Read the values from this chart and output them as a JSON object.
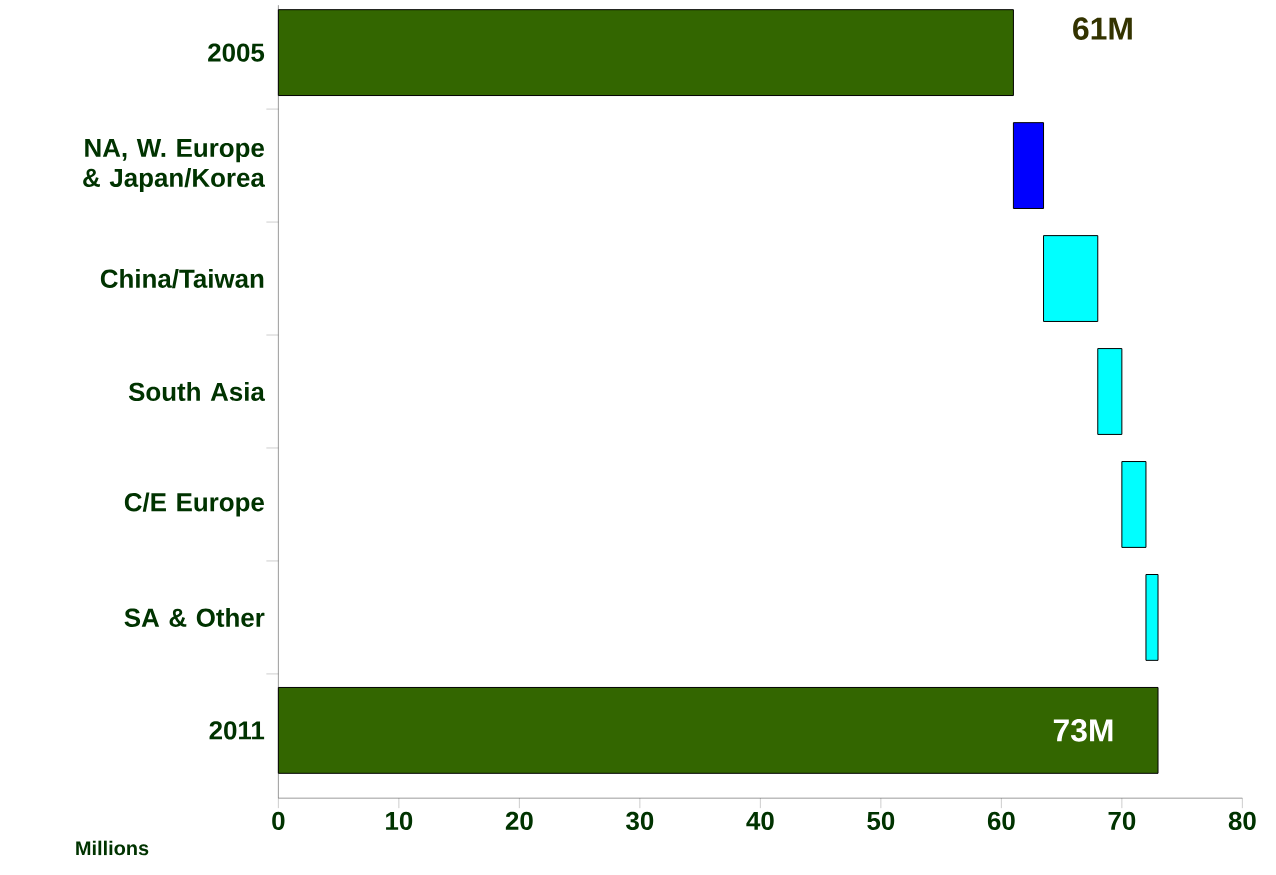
{
  "chart_data": {
    "type": "bar",
    "orientation": "horizontal",
    "xlabel": "Millions",
    "categories": [
      "2005",
      "NA, W. Europe & Japan/Korea",
      "China/Taiwan",
      "South Asia",
      "C/E Europe",
      "SA & Other",
      "2011"
    ],
    "values": [
      61,
      2.5,
      4.5,
      2,
      2,
      1,
      73
    ],
    "base": [
      0,
      61,
      63.5,
      68,
      70,
      72,
      0
    ],
    "colors": [
      "#336600",
      "#0000ff",
      "#00ffff",
      "#00ffff",
      "#00ffff",
      "#00ffff",
      "#336600"
    ],
    "value_labels": [
      "61M",
      null,
      null,
      null,
      null,
      null,
      "73M"
    ],
    "xlim": [
      0,
      80
    ],
    "xticks": [
      0,
      10,
      20,
      30,
      40,
      50,
      60,
      70,
      80
    ]
  }
}
